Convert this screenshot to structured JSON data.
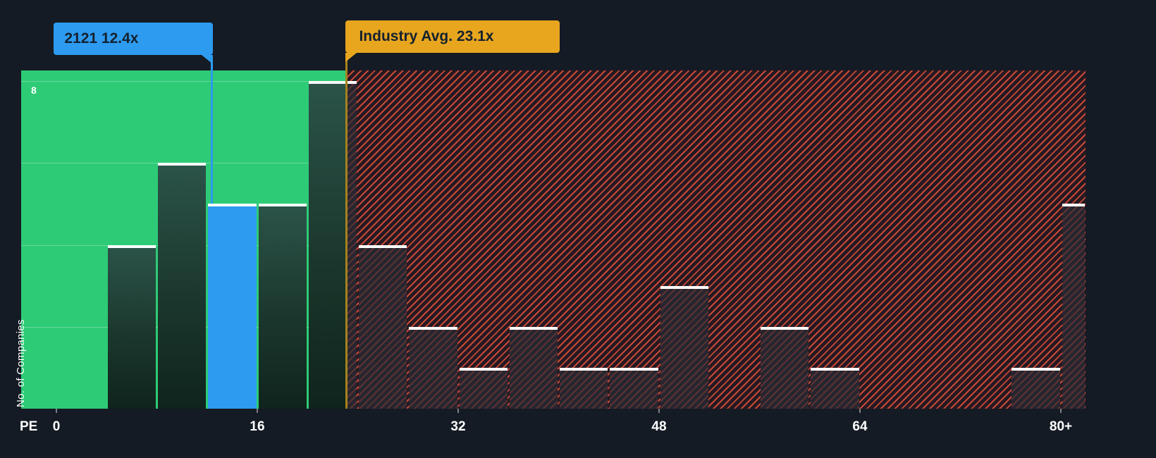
{
  "colors": {
    "background": "#151b24",
    "below_avg_region_green": "#2ecb77",
    "company_blue": "#2d9bf0",
    "industry_avg_gold": "#e8a61f",
    "above_avg_stripe_red": "#e5523c",
    "bar_cap_white": "#ffffff"
  },
  "chart_data": {
    "type": "bar",
    "subtype": "histogram",
    "title": "",
    "xlabel": "PE",
    "ylabel": "No. of Companies",
    "y_axis": {
      "tick_label": "8",
      "tick_value": 8,
      "ylim": [
        0,
        8.25
      ],
      "grid_values": [
        2,
        4,
        6,
        8
      ]
    },
    "x_axis": {
      "ticks": [
        {
          "label": "0",
          "pe": 0
        },
        {
          "label": "16",
          "pe": 16
        },
        {
          "label": "32",
          "pe": 32
        },
        {
          "label": "48",
          "pe": 48
        },
        {
          "label": "64",
          "pe": 64
        },
        {
          "label": "80+",
          "pe": 80
        }
      ]
    },
    "bucket_size": 4,
    "buckets": [
      {
        "start": 0,
        "count": 0
      },
      {
        "start": 4,
        "count": 4
      },
      {
        "start": 8,
        "count": 6
      },
      {
        "start": 12,
        "count": 5,
        "highlight": true
      },
      {
        "start": 16,
        "count": 5
      },
      {
        "start": 20,
        "count": 8
      },
      {
        "start": 24,
        "count": 4
      },
      {
        "start": 28,
        "count": 2
      },
      {
        "start": 32,
        "count": 1
      },
      {
        "start": 36,
        "count": 2
      },
      {
        "start": 40,
        "count": 1
      },
      {
        "start": 44,
        "count": 1
      },
      {
        "start": 48,
        "count": 3
      },
      {
        "start": 52,
        "count": 0
      },
      {
        "start": 56,
        "count": 2
      },
      {
        "start": 60,
        "count": 1
      },
      {
        "start": 64,
        "count": 0
      },
      {
        "start": 68,
        "count": 0
      },
      {
        "start": 72,
        "count": 0
      },
      {
        "start": 76,
        "count": 1
      },
      {
        "start": 80,
        "count": 5,
        "edge": true
      }
    ],
    "company_marker": {
      "label": "2121 12.4x",
      "pe": 12.4
    },
    "industry_avg": {
      "label": "Industry Avg. 23.1x",
      "pe": 23.1
    },
    "regions": [
      {
        "name": "below-average",
        "style": "green-fill",
        "to_pe": 23.1
      },
      {
        "name": "above-average",
        "style": "red-hatch",
        "from_pe": 23.1
      }
    ]
  }
}
